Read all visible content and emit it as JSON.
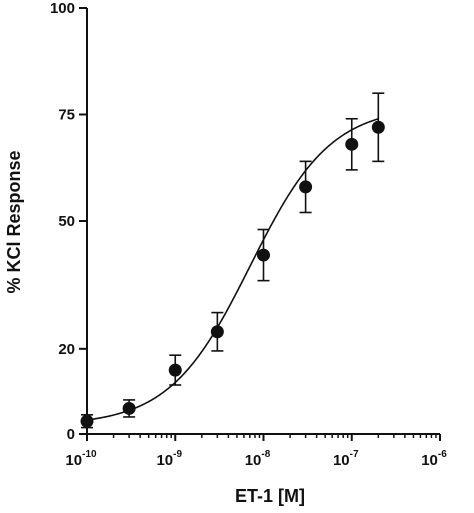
{
  "chart_data": {
    "type": "scatter",
    "xlabel": "ET-1 [M]",
    "ylabel": "% KCl Response",
    "x_scale": "log",
    "xlim": [
      1e-10,
      1e-06
    ],
    "ylim": [
      0,
      100
    ],
    "x_ticks": [
      {
        "base": "10",
        "exp": "-10",
        "value": 1e-10
      },
      {
        "base": "10",
        "exp": "-9",
        "value": 1e-09
      },
      {
        "base": "10",
        "exp": "-8",
        "value": 1e-08
      },
      {
        "base": "10",
        "exp": "-7",
        "value": 1e-07
      },
      {
        "base": "10",
        "exp": "-6",
        "value": 1e-06
      }
    ],
    "y_ticks": [
      0,
      20,
      50,
      75,
      100
    ],
    "series": [
      {
        "points": [
          {
            "x": 1e-10,
            "y": 3,
            "err": 1.5
          },
          {
            "x": 3e-10,
            "y": 6,
            "err": 2
          },
          {
            "x": 1e-09,
            "y": 15,
            "err": 3.5
          },
          {
            "x": 3e-09,
            "y": 24,
            "err": 4.5
          },
          {
            "x": 1e-08,
            "y": 42,
            "err": 6
          },
          {
            "x": 3e-08,
            "y": 58,
            "err": 6
          },
          {
            "x": 1e-07,
            "y": 68,
            "err": 6
          },
          {
            "x": 2e-07,
            "y": 72,
            "err": 8
          }
        ],
        "fit": {
          "model": "sigmoid",
          "bottom": 2,
          "top": 77,
          "logEC50": -8.15,
          "hill": 0.95
        }
      }
    ],
    "grid": false,
    "colors": {
      "marker": "#111111",
      "line": "#111111",
      "axis": "#111111"
    }
  }
}
